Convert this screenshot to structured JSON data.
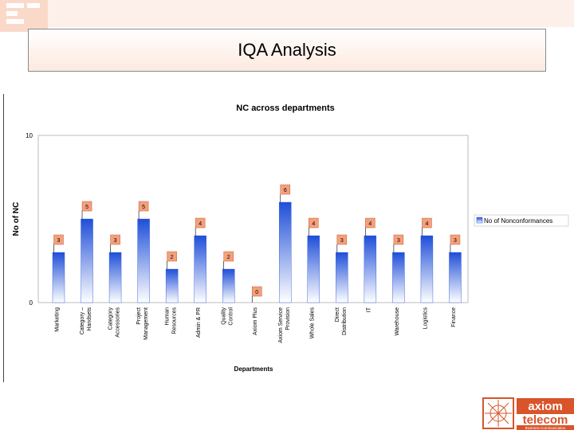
{
  "slide": {
    "title": "IQA Analysis"
  },
  "logo": {
    "line1": "axiom",
    "line2": "telecom",
    "tagline": "Business Communication"
  },
  "colors": {
    "accent": "#e8734a",
    "bar_top": "#1f4fd8",
    "bar_bottom": "#ffffff",
    "label_box": "#f4a07c"
  },
  "chart_data": {
    "type": "bar",
    "title": "NC across departments",
    "xlabel": "Departments",
    "ylabel": "No of NC",
    "ylim": [
      0,
      10
    ],
    "yticks": [
      0,
      10
    ],
    "legend_position": "right",
    "categories": [
      "Marketing",
      "Category – Handsets",
      "Category Accessories",
      "Project Management",
      "Human Resources",
      "Admin & PR",
      "Quality Control",
      "Axiom Plus",
      "Axiom Service Provision",
      "Whole Sales",
      "Direct Distribution",
      "IT",
      "Warehouse",
      "Logistics",
      "Finance"
    ],
    "series": [
      {
        "name": "No of Nonconformances",
        "values": [
          3,
          5,
          3,
          5,
          2,
          4,
          2,
          0,
          6,
          4,
          3,
          4,
          3,
          4,
          3
        ]
      }
    ]
  }
}
